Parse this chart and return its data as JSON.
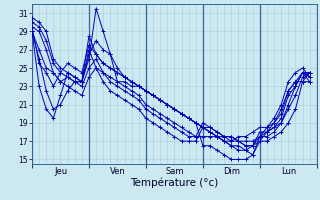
{
  "xlabel": "Température (°c)",
  "background_color": "#cce8f0",
  "plot_bg_color": "#cce8f0",
  "line_color": "#0000bb",
  "grid_color": "#aaccdd",
  "sep_color": "#336699",
  "ylim": [
    14.5,
    32
  ],
  "yticks": [
    15,
    17,
    19,
    21,
    23,
    25,
    27,
    29,
    31
  ],
  "day_labels": [
    "Jeu",
    "Ven",
    "Sam",
    "Dim",
    "Lun"
  ],
  "num_days": 5,
  "num_points_per_day": 8,
  "series": [
    [
      29.5,
      29.0,
      27.0,
      24.5,
      23.5,
      23.0,
      22.5,
      22.0,
      24.0,
      25.0,
      23.5,
      22.5,
      22.0,
      21.5,
      21.0,
      20.5,
      19.5,
      19.0,
      18.5,
      18.0,
      17.5,
      17.0,
      17.0,
      17.0,
      18.5,
      18.0,
      17.5,
      17.5,
      17.0,
      17.0,
      16.5,
      16.5,
      17.0,
      17.0,
      17.5,
      18.0,
      19.0,
      20.5,
      23.5,
      24.5
    ],
    [
      30.0,
      29.5,
      28.0,
      25.5,
      24.5,
      24.0,
      23.5,
      23.0,
      25.0,
      26.0,
      24.5,
      23.5,
      23.0,
      22.5,
      22.0,
      21.5,
      20.5,
      20.0,
      19.5,
      19.0,
      18.5,
      18.0,
      17.5,
      17.5,
      19.0,
      18.5,
      18.0,
      17.5,
      17.5,
      17.0,
      16.5,
      16.5,
      18.0,
      18.0,
      18.5,
      19.0,
      20.5,
      22.0,
      24.0,
      24.5
    ],
    [
      30.5,
      30.0,
      29.0,
      26.0,
      25.0,
      24.5,
      24.0,
      23.5,
      26.5,
      28.0,
      27.0,
      26.5,
      23.5,
      23.0,
      22.5,
      22.0,
      21.0,
      20.5,
      20.0,
      19.5,
      19.0,
      18.5,
      18.0,
      17.5,
      17.5,
      17.5,
      17.5,
      17.0,
      16.5,
      16.5,
      16.0,
      15.5,
      17.5,
      17.5,
      18.0,
      19.0,
      21.0,
      23.0,
      24.5,
      24.0
    ],
    [
      29.0,
      23.0,
      20.5,
      19.5,
      22.0,
      24.5,
      24.0,
      23.5,
      26.0,
      31.5,
      29.0,
      26.5,
      25.0,
      24.0,
      23.5,
      23.0,
      22.5,
      22.0,
      21.5,
      21.0,
      20.5,
      20.0,
      19.5,
      19.0,
      16.5,
      16.5,
      16.0,
      15.5,
      15.0,
      15.0,
      15.0,
      15.5,
      17.0,
      18.0,
      19.0,
      20.0,
      22.5,
      23.5,
      23.5,
      23.5
    ],
    [
      29.0,
      26.0,
      22.5,
      20.5,
      21.0,
      22.5,
      23.5,
      23.5,
      27.0,
      25.0,
      24.5,
      24.0,
      23.5,
      23.5,
      23.0,
      23.0,
      22.5,
      22.0,
      21.5,
      21.0,
      20.5,
      20.0,
      19.5,
      19.0,
      18.5,
      18.5,
      18.0,
      17.5,
      17.5,
      17.0,
      17.0,
      17.0,
      17.5,
      18.0,
      18.5,
      19.5,
      22.0,
      23.0,
      24.5,
      24.5
    ],
    [
      29.5,
      25.5,
      24.5,
      23.0,
      24.5,
      25.5,
      25.0,
      24.5,
      27.5,
      26.5,
      25.5,
      25.0,
      24.5,
      24.0,
      23.5,
      23.0,
      22.5,
      22.0,
      21.5,
      21.0,
      20.5,
      20.0,
      19.5,
      19.0,
      18.5,
      18.0,
      17.5,
      17.0,
      16.5,
      16.0,
      16.0,
      16.5,
      17.5,
      18.5,
      19.5,
      21.0,
      23.5,
      24.5,
      25.0,
      24.0
    ],
    [
      29.0,
      27.0,
      25.0,
      24.5,
      23.5,
      24.0,
      23.5,
      23.5,
      28.5,
      26.5,
      25.5,
      25.0,
      24.5,
      24.0,
      23.5,
      23.0,
      22.5,
      22.0,
      21.5,
      21.0,
      20.5,
      20.0,
      19.5,
      19.0,
      18.5,
      18.0,
      17.5,
      17.0,
      17.0,
      17.5,
      17.5,
      18.0,
      18.5,
      18.5,
      19.0,
      20.5,
      22.5,
      23.5,
      24.5,
      23.5
    ]
  ]
}
